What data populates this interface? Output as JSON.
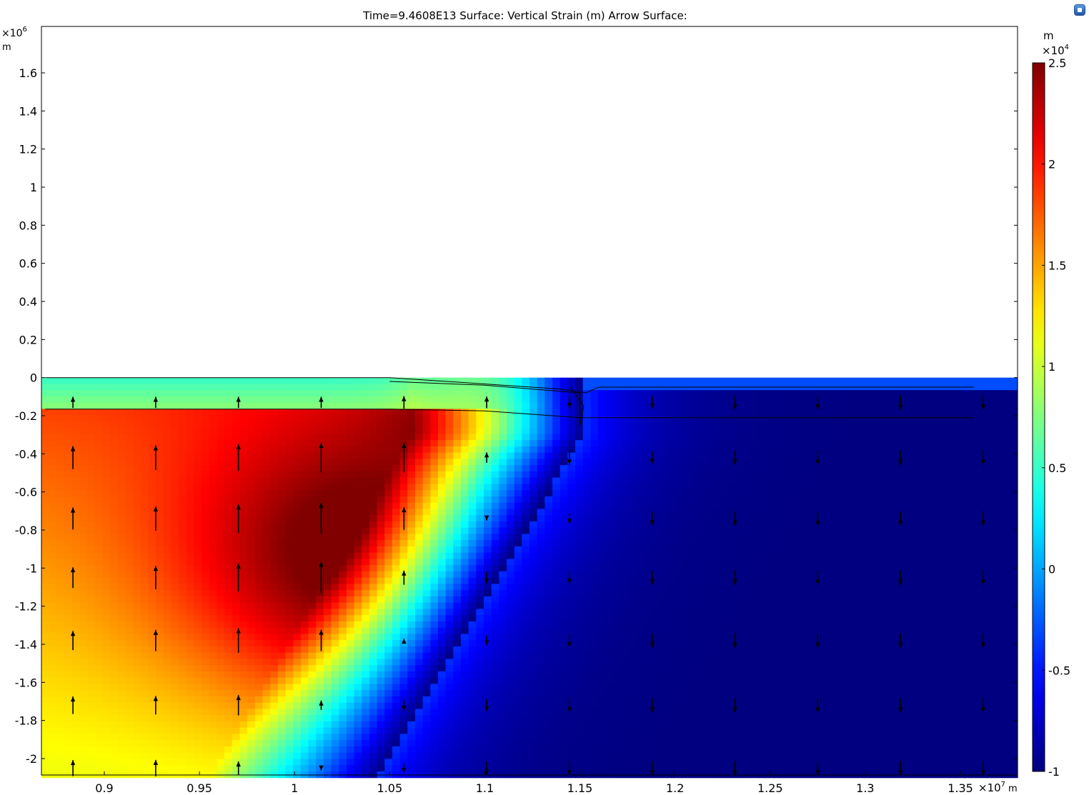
{
  "chart_data": {
    "type": "heatmap",
    "title": "Time=9.4608E13   Surface: Vertical Strain (m)  Arrow Surface:",
    "xlim": [
      8670000.0,
      13570000.0
    ],
    "ylim": [
      -2100000.0,
      1850000.0
    ],
    "x_exponent_label": "×10",
    "x_exponent": "7",
    "x_unit": "m",
    "y_exponent_label": "×10",
    "y_exponent": "6",
    "y_unit": "m",
    "x_ticks": [
      {
        "v": 0.9,
        "label": "0.9"
      },
      {
        "v": 0.95,
        "label": "0.95"
      },
      {
        "v": 1.0,
        "label": "1"
      },
      {
        "v": 1.05,
        "label": "1.05"
      },
      {
        "v": 1.1,
        "label": "1.1"
      },
      {
        "v": 1.15,
        "label": "1.15"
      },
      {
        "v": 1.2,
        "label": "1.2"
      },
      {
        "v": 1.25,
        "label": "1.25"
      },
      {
        "v": 1.3,
        "label": "1.3"
      },
      {
        "v": 1.35,
        "label": "1.35"
      }
    ],
    "y_ticks": [
      {
        "v": 1.6,
        "label": "1.6"
      },
      {
        "v": 1.4,
        "label": "1.4"
      },
      {
        "v": 1.2,
        "label": "1.2"
      },
      {
        "v": 1.0,
        "label": "1"
      },
      {
        "v": 0.8,
        "label": "0.8"
      },
      {
        "v": 0.6,
        "label": "0.6"
      },
      {
        "v": 0.4,
        "label": "0.4"
      },
      {
        "v": 0.2,
        "label": "0.2"
      },
      {
        "v": 0.0,
        "label": "0"
      },
      {
        "v": -0.2,
        "label": "-0.2"
      },
      {
        "v": -0.4,
        "label": "-0.4"
      },
      {
        "v": -0.6,
        "label": "-0.6"
      },
      {
        "v": -0.8,
        "label": "-0.8"
      },
      {
        "v": -1.0,
        "label": "-1"
      },
      {
        "v": -1.2,
        "label": "-1.2"
      },
      {
        "v": -1.4,
        "label": "-1.4"
      },
      {
        "v": -1.6,
        "label": "-1.6"
      },
      {
        "v": -1.8,
        "label": "-1.8"
      },
      {
        "v": -2.0,
        "label": "-2"
      }
    ],
    "colorbar": {
      "unit": "m",
      "exponent_label": "×10",
      "exponent": "4",
      "range": [
        -1,
        2.5
      ],
      "colormap": "jet",
      "ticks": [
        {
          "v": 2.5,
          "label": "2.5"
        },
        {
          "v": 2,
          "label": "2"
        },
        {
          "v": 1.5,
          "label": "1.5"
        },
        {
          "v": 1,
          "label": "1"
        },
        {
          "v": 0.5,
          "label": "0.5"
        },
        {
          "v": 0,
          "label": "0"
        },
        {
          "v": -0.5,
          "label": "-0.5"
        },
        {
          "v": -1,
          "label": "-1"
        }
      ]
    },
    "field": {
      "description_units": "vertical strain in units of 1e4 m",
      "domain_top_y": 0.0,
      "domain_bottom_y": -2.1,
      "peak_value": 2.5,
      "trough_value": -1.0
    },
    "arrow_columns_x": [
      0.8835,
      0.927,
      0.9705,
      1.014,
      1.0575,
      1.101,
      1.1445,
      1.188,
      1.2315,
      1.275,
      1.3185,
      1.362
    ],
    "arrow_rows_y": [
      -0.13,
      -0.42,
      -0.74,
      -1.05,
      -1.38,
      -1.72,
      -2.05
    ]
  }
}
